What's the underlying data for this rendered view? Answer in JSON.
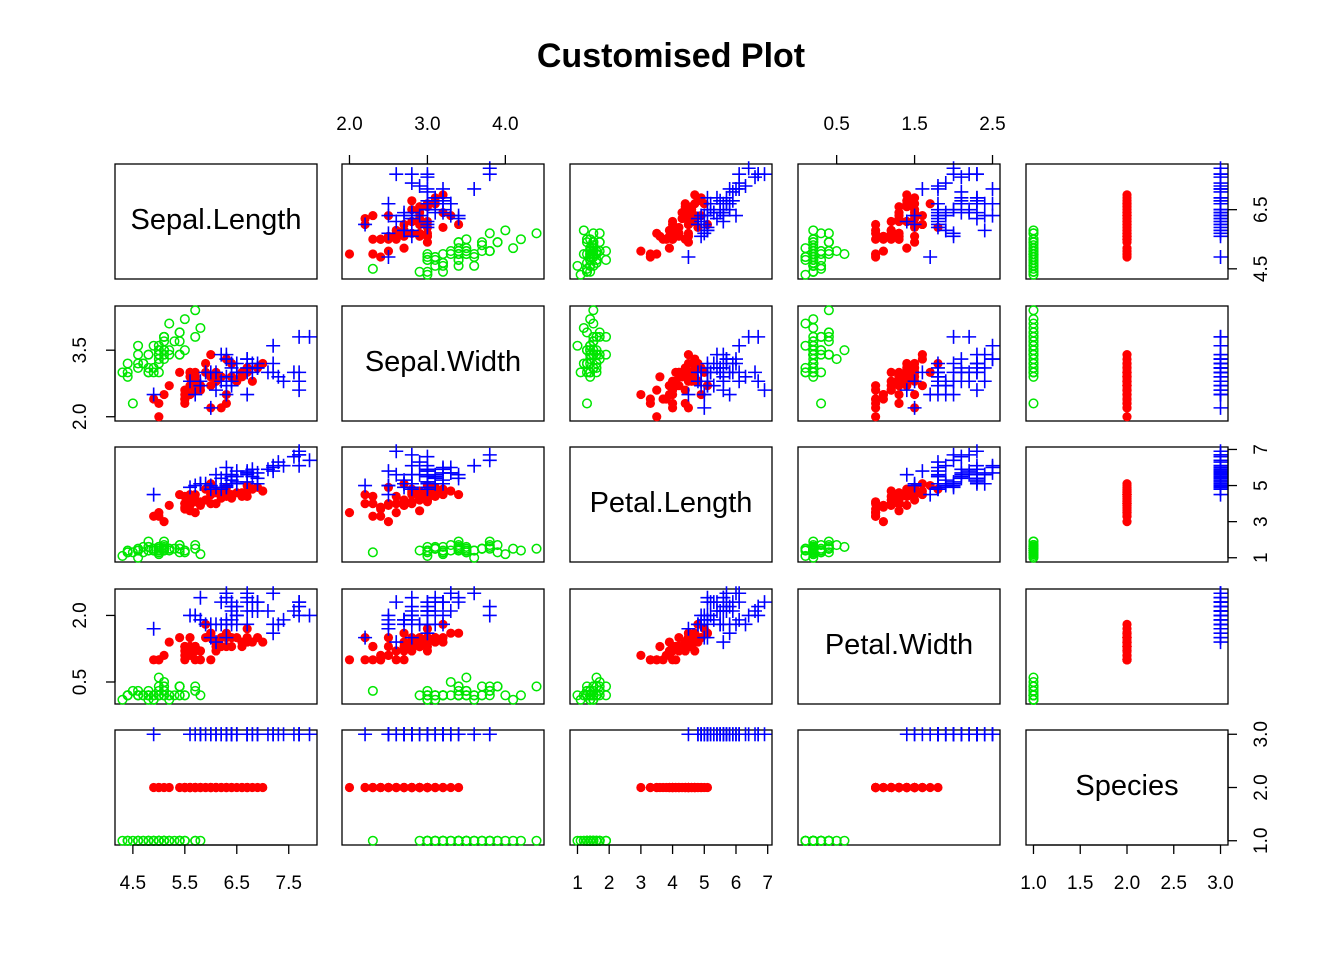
{
  "chart_data": {
    "type": "pairs",
    "title": "Customised Plot",
    "variables": [
      "Sepal.Length",
      "Sepal.Width",
      "Petal.Length",
      "Petal.Width",
      "Species"
    ],
    "axes": [
      {
        "lim": [
          4.156,
          8.044
        ],
        "xticks": [
          4.5,
          5.5,
          6.5,
          7.5
        ],
        "yticks": [
          4.5,
          6.5
        ]
      },
      {
        "lim": [
          1.904,
          4.496
        ],
        "xticks": [
          {
            "value": 2,
            "label": "2.0"
          },
          {
            "value": 3,
            "label": "3.0"
          },
          {
            "value": 4,
            "label": "4.0"
          }
        ],
        "yticks": [
          {
            "value": 2,
            "label": "2.0"
          },
          3.5
        ]
      },
      {
        "lim": [
          0.764,
          7.136
        ],
        "xticks": [
          1,
          2,
          3,
          4,
          5,
          6,
          7
        ],
        "yticks": [
          1,
          3,
          5,
          7
        ]
      },
      {
        "lim": [
          0.004,
          2.596
        ],
        "xticks": [
          0.5,
          1.5,
          2.5
        ],
        "yticks": [
          0.5,
          {
            "value": 2,
            "label": "2.0"
          }
        ]
      },
      {
        "lim": [
          0.92,
          3.08
        ],
        "xticks": [
          {
            "value": 1,
            "label": "1.0"
          },
          1.5,
          {
            "value": 2,
            "label": "2.0"
          },
          2.5,
          {
            "value": 3,
            "label": "3.0"
          }
        ],
        "yticks": [
          {
            "value": 1,
            "label": "1.0"
          },
          {
            "value": 2,
            "label": "2.0"
          },
          {
            "value": 3,
            "label": "3.0"
          }
        ]
      }
    ],
    "styles": [
      {
        "color": "#00e600",
        "marker": "open-circle"
      },
      {
        "color": "#ff0000",
        "marker": "filled-circle"
      },
      {
        "color": "#0000ff",
        "marker": "plus"
      }
    ],
    "columns": [
      [
        5.1,
        4.9,
        4.7,
        4.6,
        5.0,
        5.4,
        4.6,
        5.0,
        4.4,
        4.9,
        5.4,
        4.8,
        4.8,
        4.3,
        5.8,
        5.7,
        5.4,
        5.1,
        5.7,
        5.1,
        5.4,
        5.1,
        4.6,
        5.1,
        4.8,
        5.0,
        5.0,
        5.2,
        5.2,
        4.7,
        4.8,
        5.4,
        5.2,
        5.5,
        4.9,
        5.0,
        5.5,
        4.9,
        4.4,
        5.1,
        5.0,
        4.5,
        4.4,
        5.0,
        5.1,
        4.8,
        5.1,
        4.6,
        5.3,
        5.0,
        7.0,
        6.4,
        6.9,
        5.5,
        6.5,
        5.7,
        6.3,
        4.9,
        6.6,
        5.2,
        5.0,
        5.9,
        6.0,
        6.1,
        5.6,
        6.7,
        5.6,
        5.8,
        6.2,
        5.6,
        5.9,
        6.1,
        6.3,
        6.1,
        6.4,
        6.6,
        6.8,
        6.7,
        6.0,
        5.7,
        5.5,
        5.5,
        5.8,
        6.0,
        5.4,
        6.0,
        6.7,
        6.3,
        5.6,
        5.5,
        5.5,
        6.1,
        5.8,
        5.0,
        5.6,
        5.7,
        5.7,
        6.2,
        5.1,
        5.7,
        6.3,
        5.8,
        7.1,
        6.3,
        6.5,
        7.6,
        4.9,
        7.3,
        6.7,
        7.2,
        6.5,
        6.4,
        6.8,
        5.7,
        5.8,
        6.4,
        6.5,
        7.7,
        7.7,
        6.0,
        6.9,
        5.6,
        7.7,
        6.3,
        6.7,
        7.2,
        6.2,
        6.1,
        6.4,
        7.2,
        7.4,
        7.9,
        6.4,
        6.3,
        6.1,
        7.7,
        6.3,
        6.4,
        6.0,
        6.9,
        6.7,
        6.9,
        5.8,
        6.8,
        6.7,
        6.7,
        6.3,
        6.5,
        6.2,
        5.9
      ],
      [
        3.5,
        3.0,
        3.2,
        3.1,
        3.6,
        3.9,
        3.4,
        3.4,
        2.9,
        3.1,
        3.7,
        3.4,
        3.0,
        3.0,
        4.0,
        4.4,
        3.9,
        3.5,
        3.8,
        3.8,
        3.4,
        3.7,
        3.6,
        3.3,
        3.4,
        3.0,
        3.4,
        3.5,
        3.4,
        3.2,
        3.1,
        3.4,
        4.1,
        4.2,
        3.1,
        3.2,
        3.5,
        3.6,
        3.0,
        3.4,
        3.5,
        2.3,
        3.2,
        3.5,
        3.8,
        3.0,
        3.8,
        3.2,
        3.7,
        3.3,
        3.2,
        3.2,
        3.1,
        2.3,
        2.8,
        2.8,
        3.3,
        2.4,
        2.9,
        2.7,
        2.0,
        3.0,
        2.2,
        2.9,
        2.9,
        3.1,
        3.0,
        2.7,
        2.2,
        2.5,
        3.2,
        2.8,
        2.5,
        2.8,
        2.9,
        3.0,
        2.8,
        3.0,
        2.9,
        2.6,
        2.4,
        2.4,
        2.7,
        2.7,
        3.0,
        3.4,
        3.1,
        2.3,
        3.0,
        2.5,
        2.6,
        3.0,
        2.6,
        2.3,
        2.7,
        3.0,
        2.9,
        2.9,
        2.5,
        2.8,
        3.3,
        2.7,
        3.0,
        2.9,
        3.0,
        3.0,
        2.5,
        2.9,
        2.5,
        3.6,
        3.2,
        2.7,
        3.0,
        2.5,
        2.8,
        3.2,
        3.0,
        3.8,
        2.6,
        2.2,
        3.2,
        2.8,
        2.8,
        2.7,
        3.3,
        3.2,
        2.8,
        3.0,
        2.8,
        3.0,
        2.8,
        3.8,
        2.8,
        2.8,
        2.6,
        3.0,
        3.4,
        3.1,
        3.0,
        3.1,
        3.1,
        3.1,
        2.7,
        3.2,
        3.3,
        3.0,
        2.5,
        3.0,
        3.4,
        3.0
      ],
      [
        1.4,
        1.4,
        1.3,
        1.5,
        1.4,
        1.7,
        1.4,
        1.5,
        1.4,
        1.5,
        1.5,
        1.6,
        1.4,
        1.1,
        1.2,
        1.5,
        1.3,
        1.4,
        1.7,
        1.5,
        1.7,
        1.5,
        1.0,
        1.7,
        1.9,
        1.6,
        1.6,
        1.5,
        1.4,
        1.6,
        1.6,
        1.5,
        1.5,
        1.4,
        1.5,
        1.2,
        1.3,
        1.4,
        1.3,
        1.5,
        1.3,
        1.3,
        1.3,
        1.6,
        1.9,
        1.4,
        1.6,
        1.4,
        1.5,
        1.4,
        4.7,
        4.5,
        4.9,
        4.0,
        4.6,
        4.5,
        4.7,
        3.3,
        4.6,
        3.9,
        3.5,
        4.2,
        4.0,
        4.7,
        3.6,
        4.4,
        4.5,
        4.1,
        4.5,
        3.9,
        4.8,
        4.0,
        4.9,
        4.7,
        4.3,
        4.4,
        4.8,
        5.0,
        4.5,
        3.5,
        3.8,
        3.7,
        3.9,
        5.1,
        4.5,
        4.5,
        4.7,
        4.4,
        4.1,
        4.0,
        4.4,
        4.6,
        4.0,
        3.3,
        4.2,
        4.2,
        4.2,
        4.3,
        3.0,
        4.1,
        6.0,
        5.1,
        5.9,
        5.6,
        5.8,
        6.6,
        4.5,
        6.3,
        5.8,
        6.1,
        5.1,
        5.3,
        5.5,
        5.0,
        5.1,
        5.3,
        5.5,
        6.7,
        6.9,
        5.0,
        5.7,
        4.9,
        6.7,
        4.9,
        5.7,
        6.0,
        4.8,
        4.9,
        5.6,
        5.8,
        6.1,
        6.4,
        5.6,
        5.1,
        5.6,
        6.1,
        5.6,
        5.5,
        4.8,
        5.4,
        5.6,
        5.1,
        5.1,
        5.9,
        5.7,
        5.2,
        5.0,
        5.2,
        5.4,
        5.1
      ],
      [
        0.2,
        0.2,
        0.2,
        0.2,
        0.2,
        0.4,
        0.3,
        0.2,
        0.2,
        0.1,
        0.2,
        0.2,
        0.1,
        0.1,
        0.2,
        0.4,
        0.4,
        0.3,
        0.3,
        0.3,
        0.2,
        0.4,
        0.2,
        0.5,
        0.2,
        0.2,
        0.4,
        0.2,
        0.2,
        0.2,
        0.2,
        0.4,
        0.1,
        0.2,
        0.2,
        0.2,
        0.2,
        0.1,
        0.2,
        0.2,
        0.3,
        0.3,
        0.2,
        0.6,
        0.4,
        0.3,
        0.2,
        0.2,
        0.2,
        0.2,
        1.4,
        1.5,
        1.5,
        1.3,
        1.5,
        1.3,
        1.6,
        1.0,
        1.3,
        1.4,
        1.0,
        1.5,
        1.0,
        1.4,
        1.3,
        1.4,
        1.5,
        1.0,
        1.5,
        1.1,
        1.8,
        1.3,
        1.5,
        1.2,
        1.3,
        1.4,
        1.4,
        1.7,
        1.5,
        1.0,
        1.1,
        1.0,
        1.2,
        1.6,
        1.5,
        1.6,
        1.5,
        1.3,
        1.3,
        1.3,
        1.2,
        1.4,
        1.2,
        1.0,
        1.3,
        1.2,
        1.3,
        1.3,
        1.1,
        1.3,
        2.5,
        1.9,
        2.1,
        1.8,
        2.2,
        2.1,
        1.7,
        1.8,
        1.8,
        2.5,
        2.0,
        1.9,
        2.1,
        2.0,
        2.4,
        2.3,
        1.8,
        2.2,
        2.3,
        1.5,
        2.3,
        2.0,
        2.0,
        1.8,
        2.1,
        1.8,
        1.8,
        1.8,
        2.1,
        1.6,
        1.9,
        2.0,
        2.2,
        1.5,
        1.4,
        2.3,
        2.4,
        1.8,
        1.8,
        2.1,
        2.4,
        2.3,
        1.9,
        2.3,
        2.5,
        2.3,
        1.9,
        2.0,
        2.3,
        1.8
      ],
      [
        1,
        1,
        1,
        1,
        1,
        1,
        1,
        1,
        1,
        1,
        1,
        1,
        1,
        1,
        1,
        1,
        1,
        1,
        1,
        1,
        1,
        1,
        1,
        1,
        1,
        1,
        1,
        1,
        1,
        1,
        1,
        1,
        1,
        1,
        1,
        1,
        1,
        1,
        1,
        1,
        1,
        1,
        1,
        1,
        1,
        1,
        1,
        1,
        1,
        1,
        2,
        2,
        2,
        2,
        2,
        2,
        2,
        2,
        2,
        2,
        2,
        2,
        2,
        2,
        2,
        2,
        2,
        2,
        2,
        2,
        2,
        2,
        2,
        2,
        2,
        2,
        2,
        2,
        2,
        2,
        2,
        2,
        2,
        2,
        2,
        2,
        2,
        2,
        2,
        2,
        2,
        2,
        2,
        2,
        2,
        2,
        2,
        2,
        2,
        2,
        3,
        3,
        3,
        3,
        3,
        3,
        3,
        3,
        3,
        3,
        3,
        3,
        3,
        3,
        3,
        3,
        3,
        3,
        3,
        3,
        3,
        3,
        3,
        3,
        3,
        3,
        3,
        3,
        3,
        3,
        3,
        3,
        3,
        3,
        3,
        3,
        3,
        3,
        3,
        3,
        3,
        3,
        3,
        3,
        3,
        3,
        3,
        3,
        3,
        3
      ]
    ]
  }
}
